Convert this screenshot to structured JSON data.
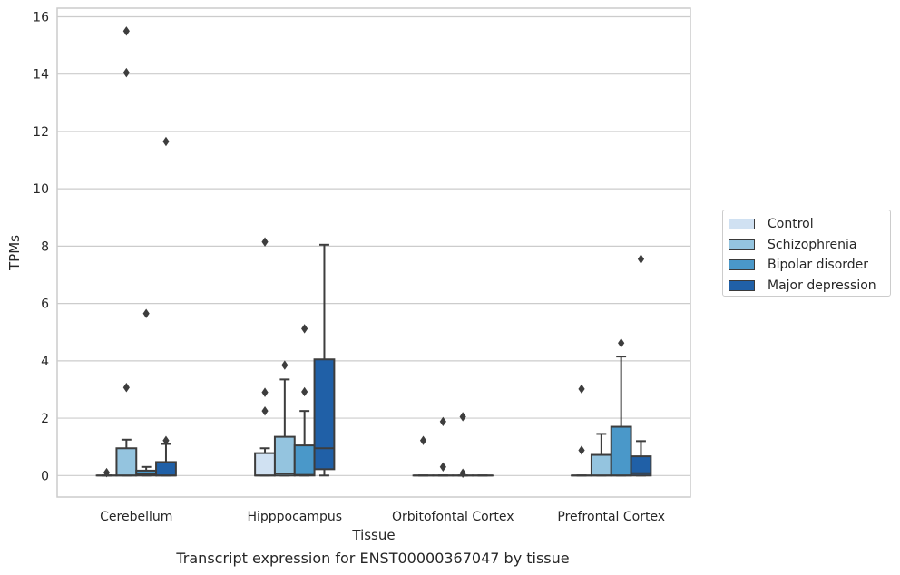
{
  "chart_data": {
    "type": "box",
    "caption": "Transcript expression for ENST00000367047 by tissue",
    "xlabel": "Tissue",
    "ylabel": "TPMs",
    "ylim": [
      -0.75,
      16.3
    ],
    "yticks": [
      0,
      2,
      4,
      6,
      8,
      10,
      12,
      14,
      16
    ],
    "grid": true,
    "legend_position": "right-outside",
    "categories": [
      "Cerebellum",
      "Hipppocampus",
      "Orbitofontal Cortex",
      "Prefrontal Cortex"
    ],
    "series": [
      {
        "name": "Control",
        "color": "#d0e1f2",
        "boxes": [
          {
            "q1": 0,
            "median": 0,
            "q3": 0,
            "whisker_low": 0,
            "whisker_high": 0,
            "outliers": [
              0.1
            ]
          },
          {
            "q1": 0,
            "median": 0,
            "q3": 0.78,
            "whisker_low": 0,
            "whisker_high": 0.95,
            "outliers": [
              2.25,
              2.9,
              8.15
            ]
          },
          {
            "q1": 0,
            "median": 0,
            "q3": 0,
            "whisker_low": 0,
            "whisker_high": 0,
            "outliers": [
              1.22
            ]
          },
          {
            "q1": 0,
            "median": 0,
            "q3": 0,
            "whisker_low": 0,
            "whisker_high": 0,
            "outliers": [
              0.88,
              3.02
            ]
          }
        ]
      },
      {
        "name": "Schizophrenia",
        "color": "#94c4df",
        "boxes": [
          {
            "q1": 0,
            "median": 0,
            "q3": 0.95,
            "whisker_low": 0,
            "whisker_high": 1.25,
            "outliers": [
              3.07,
              14.05,
              15.5
            ]
          },
          {
            "q1": 0,
            "median": 0.07,
            "q3": 1.35,
            "whisker_low": 0,
            "whisker_high": 3.35,
            "outliers": [
              3.85
            ]
          },
          {
            "q1": 0,
            "median": 0,
            "q3": 0,
            "whisker_low": 0,
            "whisker_high": 0,
            "outliers": [
              0.3,
              1.88
            ]
          },
          {
            "q1": 0,
            "median": 0,
            "q3": 0.72,
            "whisker_low": 0,
            "whisker_high": 1.45,
            "outliers": []
          }
        ]
      },
      {
        "name": "Bipolar disorder",
        "color": "#4a98c9",
        "boxes": [
          {
            "q1": 0,
            "median": 0.05,
            "q3": 0.17,
            "whisker_low": 0,
            "whisker_high": 0.3,
            "outliers": [
              5.65
            ]
          },
          {
            "q1": 0,
            "median": 0.02,
            "q3": 1.05,
            "whisker_low": 0,
            "whisker_high": 2.25,
            "outliers": [
              2.92,
              5.12
            ]
          },
          {
            "q1": 0,
            "median": 0,
            "q3": 0,
            "whisker_low": 0,
            "whisker_high": 0,
            "outliers": [
              0.08,
              2.05
            ]
          },
          {
            "q1": 0,
            "median": 0,
            "q3": 1.7,
            "whisker_low": 0,
            "whisker_high": 4.15,
            "outliers": [
              4.62
            ]
          }
        ]
      },
      {
        "name": "Major depression",
        "color": "#2060a7",
        "boxes": [
          {
            "q1": 0,
            "median": 0,
            "q3": 0.47,
            "whisker_low": 0,
            "whisker_high": 1.1,
            "outliers": [
              1.22,
              11.65
            ]
          },
          {
            "q1": 0.22,
            "median": 0.95,
            "q3": 4.05,
            "whisker_low": 0,
            "whisker_high": 8.05,
            "outliers": []
          },
          {
            "q1": 0,
            "median": 0,
            "q3": 0,
            "whisker_low": 0,
            "whisker_high": 0,
            "outliers": []
          },
          {
            "q1": 0,
            "median": 0.08,
            "q3": 0.67,
            "whisker_low": 0,
            "whisker_high": 1.2,
            "outliers": [
              7.55
            ]
          }
        ]
      }
    ]
  }
}
